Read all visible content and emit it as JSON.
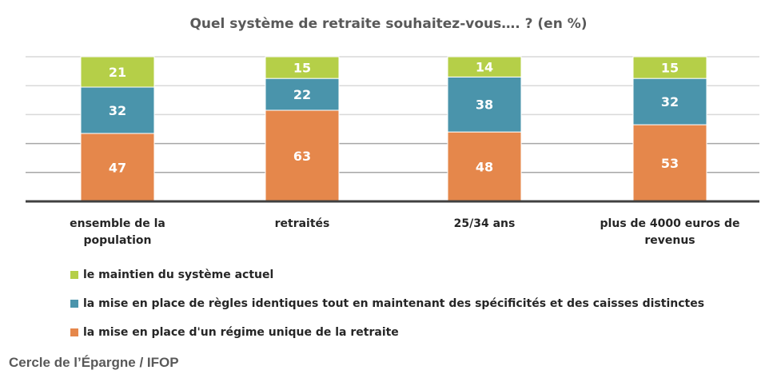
{
  "chart_data": {
    "type": "bar",
    "stacked": true,
    "title": "Quel système de retraite souhaitez-vous…. ? (en %)",
    "categories": [
      "ensemble de la population",
      "retraités",
      "25/34 ans",
      "plus de 4000 euros de revenus"
    ],
    "series": [
      {
        "name": "la mise en place d'un régime unique de la retraite",
        "values": [
          47,
          63,
          48,
          53
        ],
        "color": "#E5874B"
      },
      {
        "name": "la mise en place de règles identiques tout en maintenant des spécificités et des caisses distinctes",
        "values": [
          32,
          22,
          38,
          32
        ],
        "color": "#4A94AB"
      },
      {
        "name": "le maintien du système actuel",
        "values": [
          21,
          15,
          14,
          15
        ],
        "color": "#B5CF48"
      }
    ],
    "ylim": [
      0,
      100
    ],
    "grid": true,
    "legend_position": "bottom-left",
    "data_labels": true
  },
  "source": "Cercle de l’Épargne / IFOP"
}
